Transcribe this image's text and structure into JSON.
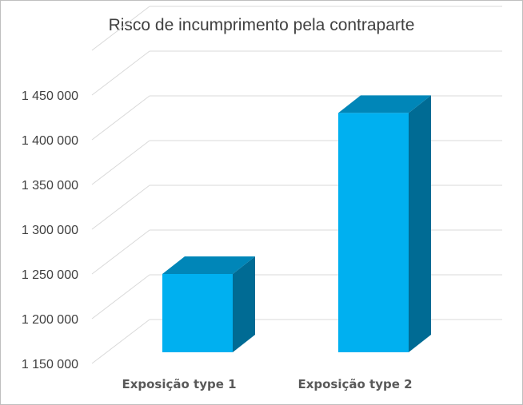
{
  "chart_data": {
    "type": "bar",
    "title": "Risco de incumprimento pela contraparte",
    "xlabel": "",
    "ylabel": "",
    "categories": [
      "Exposição type 1",
      "Exposição type 2"
    ],
    "values": [
      1250000,
      1430000
    ],
    "ylim": [
      1150000,
      1500000
    ],
    "yticks": [
      1150000,
      1200000,
      1250000,
      1300000,
      1350000,
      1400000,
      1450000
    ],
    "ytick_labels": [
      "1 150 000",
      "1 200 000",
      "1 250 000",
      "1 300 000",
      "1 350 000",
      "1 400 000",
      "1 450 000"
    ],
    "grid": true,
    "legend": "none",
    "colors": {
      "front": "#00b0f0",
      "top": "#0086b8",
      "side": "#006b94",
      "grid": "#d9d9d9"
    }
  }
}
